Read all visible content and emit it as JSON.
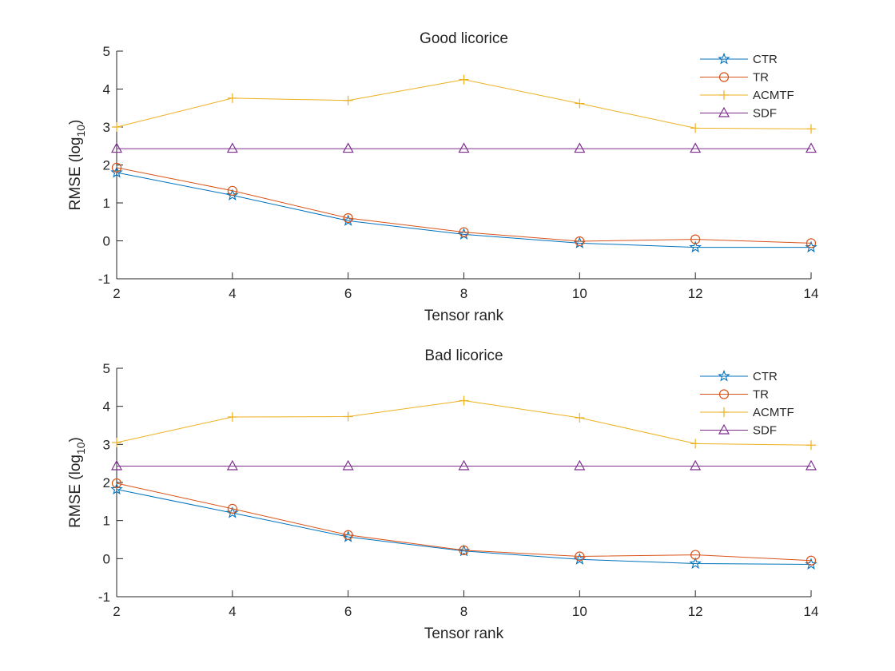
{
  "chart_data": [
    {
      "type": "line",
      "title": "Good licorice",
      "xlabel": "Tensor rank",
      "ylabel_main": "RMSE (log",
      "ylabel_sub": "10",
      "ylabel_close": ")",
      "x": [
        2,
        4,
        6,
        8,
        10,
        12,
        14
      ],
      "xlim": [
        2,
        14
      ],
      "ylim": [
        -1,
        5
      ],
      "xticks": [
        2,
        4,
        6,
        8,
        10,
        12,
        14
      ],
      "yticks": [
        -1,
        0,
        1,
        2,
        3,
        4,
        5
      ],
      "grid": false,
      "legend_position": "top-right",
      "series": [
        {
          "name": "CTR",
          "color": "#0072BD",
          "marker": "star",
          "values": [
            1.8,
            1.2,
            0.53,
            0.17,
            -0.06,
            -0.17,
            -0.17
          ]
        },
        {
          "name": "TR",
          "color": "#D95319",
          "marker": "circle",
          "values": [
            1.93,
            1.32,
            0.6,
            0.23,
            -0.01,
            0.04,
            -0.06
          ]
        },
        {
          "name": "ACMTF",
          "color": "#EDB120",
          "marker": "plus",
          "values": [
            3.0,
            3.76,
            3.7,
            4.25,
            3.62,
            2.97,
            2.95
          ]
        },
        {
          "name": "SDF",
          "color": "#7E2F8E",
          "marker": "triangle",
          "values": [
            2.43,
            2.43,
            2.43,
            2.43,
            2.43,
            2.43,
            2.43
          ]
        }
      ]
    },
    {
      "type": "line",
      "title": "Bad licorice",
      "xlabel": "Tensor rank",
      "ylabel_main": "RMSE (log",
      "ylabel_sub": "10",
      "ylabel_close": ")",
      "x": [
        2,
        4,
        6,
        8,
        10,
        12,
        14
      ],
      "xlim": [
        2,
        14
      ],
      "ylim": [
        -1,
        5
      ],
      "xticks": [
        2,
        4,
        6,
        8,
        10,
        12,
        14
      ],
      "yticks": [
        -1,
        0,
        1,
        2,
        3,
        4,
        5
      ],
      "grid": false,
      "legend_position": "top-right",
      "series": [
        {
          "name": "CTR",
          "color": "#0072BD",
          "marker": "star",
          "values": [
            1.82,
            1.2,
            0.57,
            0.2,
            -0.02,
            -0.13,
            -0.15
          ]
        },
        {
          "name": "TR",
          "color": "#D95319",
          "marker": "circle",
          "values": [
            1.98,
            1.31,
            0.62,
            0.22,
            0.06,
            0.1,
            -0.05
          ]
        },
        {
          "name": "ACMTF",
          "color": "#EDB120",
          "marker": "plus",
          "values": [
            3.05,
            3.72,
            3.73,
            4.15,
            3.7,
            3.02,
            2.98
          ]
        },
        {
          "name": "SDF",
          "color": "#7E2F8E",
          "marker": "triangle",
          "values": [
            2.43,
            2.43,
            2.43,
            2.43,
            2.43,
            2.43,
            2.43
          ]
        }
      ]
    }
  ]
}
